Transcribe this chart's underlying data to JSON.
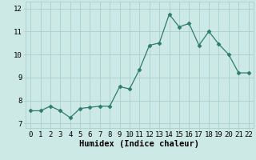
{
  "x": [
    0,
    1,
    2,
    3,
    4,
    5,
    6,
    7,
    8,
    9,
    10,
    11,
    12,
    13,
    14,
    15,
    16,
    17,
    18,
    19,
    20,
    21,
    22
  ],
  "y": [
    7.55,
    7.55,
    7.75,
    7.55,
    7.25,
    7.65,
    7.7,
    7.75,
    7.75,
    8.6,
    8.5,
    9.35,
    10.4,
    10.5,
    11.75,
    11.2,
    11.35,
    10.4,
    11.0,
    10.45,
    10.0,
    9.2,
    9.2
  ],
  "line_color": "#2d7d6e",
  "marker": "D",
  "marker_size": 2.5,
  "bg_color": "#cce9e5",
  "grid_color": "#aacfca",
  "xlabel": "Humidex (Indice chaleur)",
  "xlim": [
    -0.5,
    22.5
  ],
  "ylim": [
    6.8,
    12.3
  ],
  "yticks": [
    7,
    8,
    9,
    10,
    11,
    12
  ],
  "xticks": [
    0,
    1,
    2,
    3,
    4,
    5,
    6,
    7,
    8,
    9,
    10,
    11,
    12,
    13,
    14,
    15,
    16,
    17,
    18,
    19,
    20,
    21,
    22
  ],
  "xlabel_fontsize": 7.5,
  "tick_fontsize": 6.5,
  "line_width": 0.9
}
